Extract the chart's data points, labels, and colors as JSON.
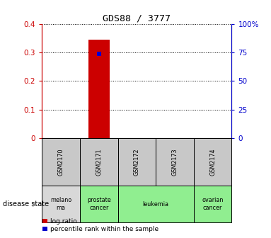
{
  "title": "GDS88 / 3777",
  "samples": [
    "GSM2170",
    "GSM2171",
    "GSM2172",
    "GSM2173",
    "GSM2174"
  ],
  "log_ratios": [
    0.0,
    0.345,
    0.0,
    0.0,
    0.0
  ],
  "percentile_rank_val": 0.295,
  "percentile_rank_idx": 1,
  "ylim_left": [
    0,
    0.4
  ],
  "ylim_right": [
    0,
    100
  ],
  "yticks_left": [
    0,
    0.1,
    0.2,
    0.3,
    0.4
  ],
  "ytick_labels_left": [
    "0",
    "0.1",
    "0.2",
    "0.3",
    "0.4"
  ],
  "yticks_right": [
    0,
    25,
    50,
    75,
    100
  ],
  "ytick_labels_right": [
    "0",
    "25",
    "50",
    "75",
    "100%"
  ],
  "bar_color": "#cc0000",
  "dot_color": "#0000cc",
  "dot_size": 4,
  "bar_width": 0.55,
  "legend_red_label": "log ratio",
  "legend_blue_label": "percentile rank within the sample",
  "disease_state_label": "disease state",
  "left_yaxis_color": "#cc0000",
  "right_yaxis_color": "#0000cc",
  "sample_bg_color": "#c8c8c8",
  "melanoma_color": "#d8d8d8",
  "green_color": "#90ee90",
  "disease_groups": [
    {
      "start": 0,
      "end": 0,
      "label": "melano\nma",
      "color": "#d8d8d8"
    },
    {
      "start": 1,
      "end": 1,
      "label": "prostate\ncancer",
      "color": "#90ee90"
    },
    {
      "start": 2,
      "end": 3,
      "label": "leukemia",
      "color": "#90ee90"
    },
    {
      "start": 4,
      "end": 4,
      "label": "ovarian\ncancer",
      "color": "#90ee90"
    }
  ]
}
